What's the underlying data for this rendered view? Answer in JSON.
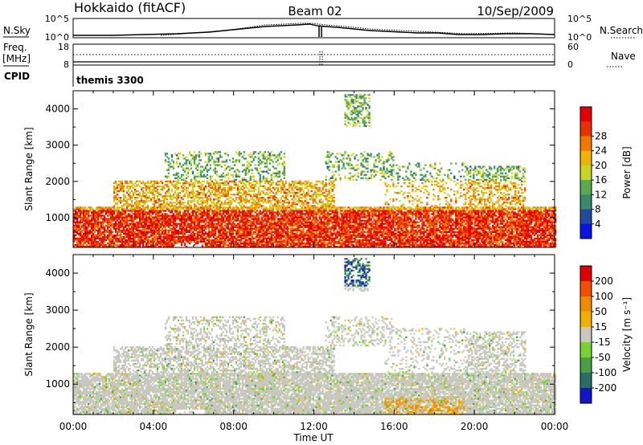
{
  "header": {
    "station": "Hokkaido (fitACF)",
    "beam": "Beam 02",
    "date": "10/Sep/2009"
  },
  "top_panels": {
    "nsky_label": "N.Sky",
    "nsky_ticks": [
      "10^5",
      "10^0"
    ],
    "nsearch_label": "N.Search",
    "freq_label_1": "Freq.",
    "freq_label_2": "[MHz]",
    "freq_ticks": [
      "18",
      "8"
    ],
    "nave_label": "Nave",
    "nave_ticks": [
      "60",
      "0"
    ],
    "cpid_label": "CPID",
    "cpid_value": "themis 3300"
  },
  "chart_data": [
    {
      "type": "heatmap",
      "panel": "power",
      "ylabel": "Slant Range [km]",
      "yticks": [
        1000,
        2000,
        3000,
        4000
      ],
      "ylim": [
        180,
        4500
      ],
      "xlabel": "Time UT",
      "xticks": [
        "00:00",
        "04:00",
        "08:00",
        "12:00",
        "16:00",
        "20:00",
        "00:00"
      ],
      "xlim_hours": [
        0,
        24
      ],
      "colorbar_label": "Power [dB]",
      "colorbar_ticks": [
        "4",
        "8",
        "12",
        "16",
        "20",
        "24",
        "28"
      ],
      "colorbar_colors": [
        "#0a14e6",
        "#1f4aa0",
        "#3a8a6a",
        "#5aa850",
        "#c8d428",
        "#f0b400",
        "#f07800",
        "#e83000",
        "#e00000"
      ]
    },
    {
      "type": "heatmap",
      "panel": "velocity",
      "ylabel": "Slant Range [km]",
      "yticks": [
        1000,
        2000,
        3000,
        4000
      ],
      "ylim": [
        180,
        4500
      ],
      "xlabel": "Time UT",
      "xticks": [
        "00:00",
        "04:00",
        "08:00",
        "12:00",
        "16:00",
        "20:00",
        "00:00"
      ],
      "xlim_hours": [
        0,
        24
      ],
      "colorbar_label": "Velocity [m s⁻¹]",
      "colorbar_ticks": [
        "200",
        "100",
        "50",
        "15",
        "-15",
        "-50",
        "-100",
        "-200"
      ],
      "colorbar_colors": [
        "#1414c8",
        "#2a6e6a",
        "#46a046",
        "#78d232",
        "#c8c8c0",
        "#f0b000",
        "#f08c00",
        "#f05000",
        "#e00000"
      ]
    }
  ]
}
